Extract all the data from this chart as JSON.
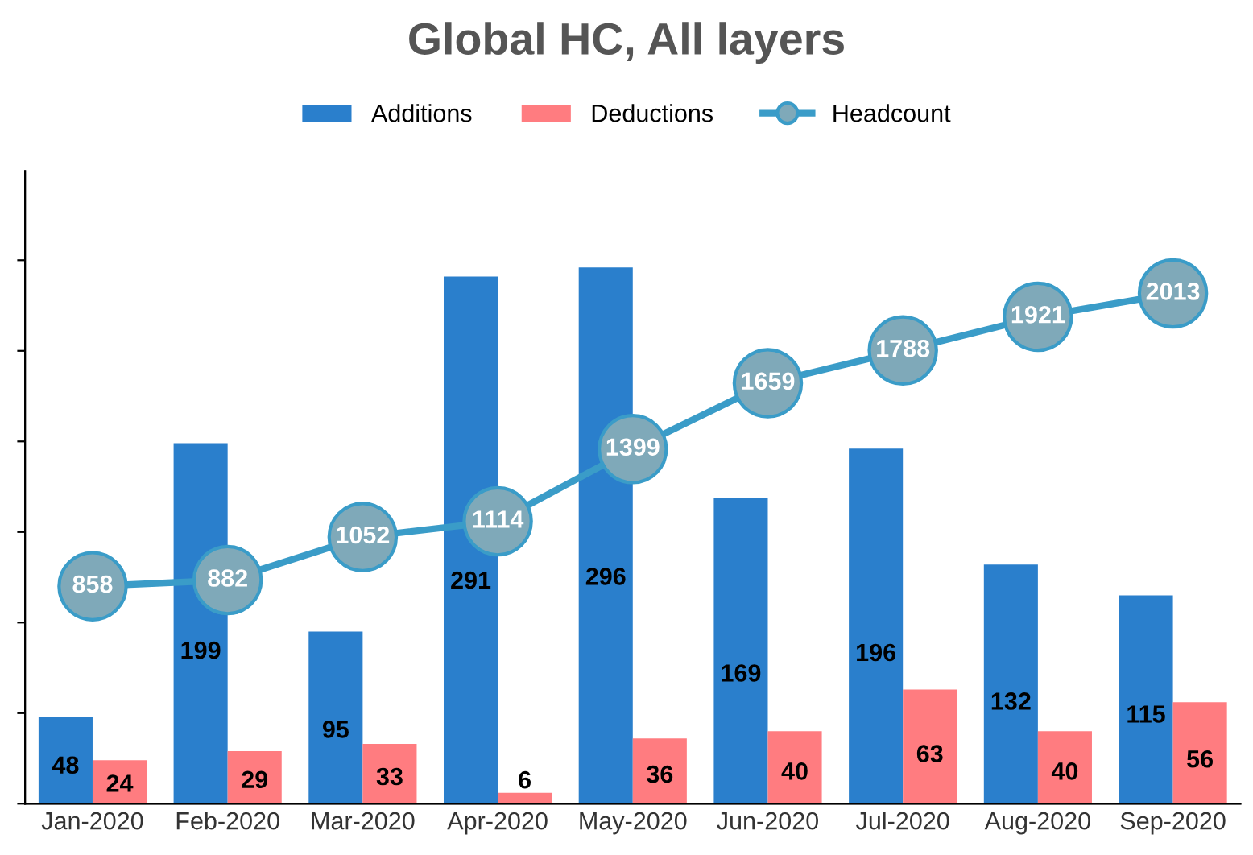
{
  "chart_data": {
    "type": "bar",
    "title": "Global HC, All layers",
    "categories": [
      "Jan-2020",
      "Feb-2020",
      "Mar-2020",
      "Apr-2020",
      "May-2020",
      "Jun-2020",
      "Jul-2020",
      "Aug-2020",
      "Sep-2020"
    ],
    "series": [
      {
        "name": "Additions",
        "color": "#2a7fcc",
        "values": [
          48,
          199,
          95,
          291,
          296,
          169,
          196,
          132,
          115
        ]
      },
      {
        "name": "Deductions",
        "color": "#ff7c80",
        "values": [
          24,
          29,
          33,
          6,
          36,
          40,
          63,
          40,
          56
        ]
      },
      {
        "name": "Headcount",
        "type": "line",
        "axis": "y2",
        "color": "#3a9cc8",
        "marker": "circle",
        "values": [
          858,
          882,
          1052,
          1114,
          1399,
          1659,
          1788,
          1921,
          2013
        ]
      }
    ],
    "tick_labels": "x",
    "data_labels": true,
    "legend": "top",
    "grid": false
  }
}
